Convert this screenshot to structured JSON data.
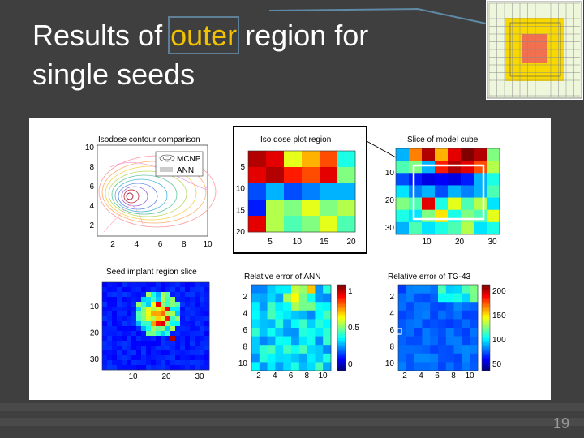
{
  "slide": {
    "title_before": "Results of ",
    "title_highlight": "outer",
    "title_after": " region for",
    "title_line2": "single seeds",
    "page_number": "19"
  },
  "colors": {
    "background": "#3f3f3f",
    "title_text": "#ffffff",
    "highlight_word": "#f2c200",
    "highlight_box": "#5f7f96",
    "page_number": "#9a9a9a"
  },
  "panels": {
    "isodose": {
      "title": "Isodose contour comparison",
      "legend": [
        "MCNP",
        "ANN"
      ],
      "xticks": [
        "2",
        "4",
        "6",
        "8",
        "10"
      ],
      "yticks": [
        "10",
        "8",
        "6",
        "4",
        "2"
      ]
    },
    "isodose_region": {
      "title": "Iso dose plot region",
      "xticks": [
        "5",
        "10",
        "15",
        "20"
      ],
      "yticks": [
        "5",
        "10",
        "15",
        "20"
      ]
    },
    "model_cube": {
      "title": "Slice of model cube",
      "xticks": [
        "10",
        "20",
        "30"
      ],
      "yticks": [
        "10",
        "20",
        "30"
      ]
    },
    "seed_slice": {
      "title": "Seed implant region slice",
      "xticks": [
        "10",
        "20",
        "30"
      ],
      "yticks": [
        "10",
        "20",
        "30"
      ]
    },
    "ann_error": {
      "title": "Relative error of ANN",
      "xticks": [
        "2",
        "4",
        "6",
        "8",
        "10"
      ],
      "yticks": [
        "2",
        "4",
        "6",
        "8",
        "10"
      ],
      "colorbar_ticks": [
        "1",
        "0.5",
        "0"
      ]
    },
    "tg43_error": {
      "title": "Relative error of TG-43",
      "xticks": [
        "2",
        "4",
        "6",
        "8",
        "10"
      ],
      "yticks": [
        "2",
        "4",
        "6",
        "8",
        "10"
      ],
      "colorbar_ticks": [
        "200",
        "150",
        "100",
        "50"
      ]
    }
  }
}
